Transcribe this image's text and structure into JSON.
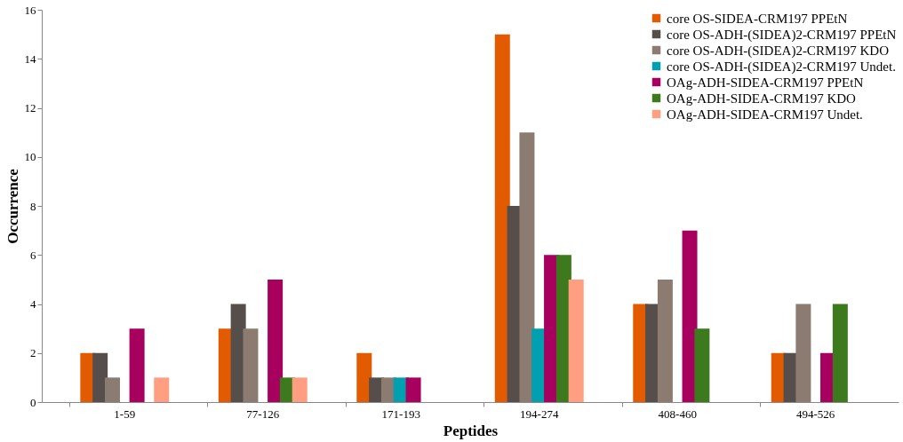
{
  "chart_data": {
    "type": "bar",
    "xlabel": "Peptides",
    "ylabel": "Occurrence",
    "categories": [
      "1-59",
      "77-126",
      "171-193",
      "194-274",
      "408-460",
      "494-526"
    ],
    "series": [
      {
        "name": "core OS-SIDEA-CRM197 PPEtN",
        "color": "#e35b00",
        "values": [
          2,
          3,
          2,
          15,
          4,
          2
        ]
      },
      {
        "name": "core OS-ADH-(SIDEA)2-CRM197 PPEtN",
        "color": "#564e4a",
        "values": [
          2,
          4,
          1,
          8,
          4,
          2
        ]
      },
      {
        "name": "core OS-ADH-(SIDEA)2-CRM197 KDO",
        "color": "#8c7b70",
        "values": [
          1,
          3,
          1,
          11,
          5,
          4
        ]
      },
      {
        "name": "core OS-ADH-(SIDEA)2-CRM197 Undet.",
        "color": "#00a0b0",
        "values": [
          0,
          0,
          1,
          3,
          0,
          0
        ]
      },
      {
        "name": "OAg-ADH-SIDEA-CRM197 PPEtN",
        "color": "#a8005f",
        "values": [
          3,
          5,
          1,
          6,
          7,
          2
        ]
      },
      {
        "name": "OAg-ADH-SIDEA-CRM197 KDO",
        "color": "#3d7a1e",
        "values": [
          0,
          1,
          0,
          6,
          3,
          4
        ]
      },
      {
        "name": "OAg-ADH-SIDEA-CRM197 Undet.",
        "color": "#ff9e80",
        "values": [
          1,
          1,
          0,
          5,
          0,
          0
        ]
      }
    ],
    "ylim": [
      0,
      16
    ],
    "yticks": [
      0,
      2,
      4,
      6,
      8,
      10,
      12,
      14,
      16
    ],
    "grid": false,
    "legend": "top right"
  }
}
